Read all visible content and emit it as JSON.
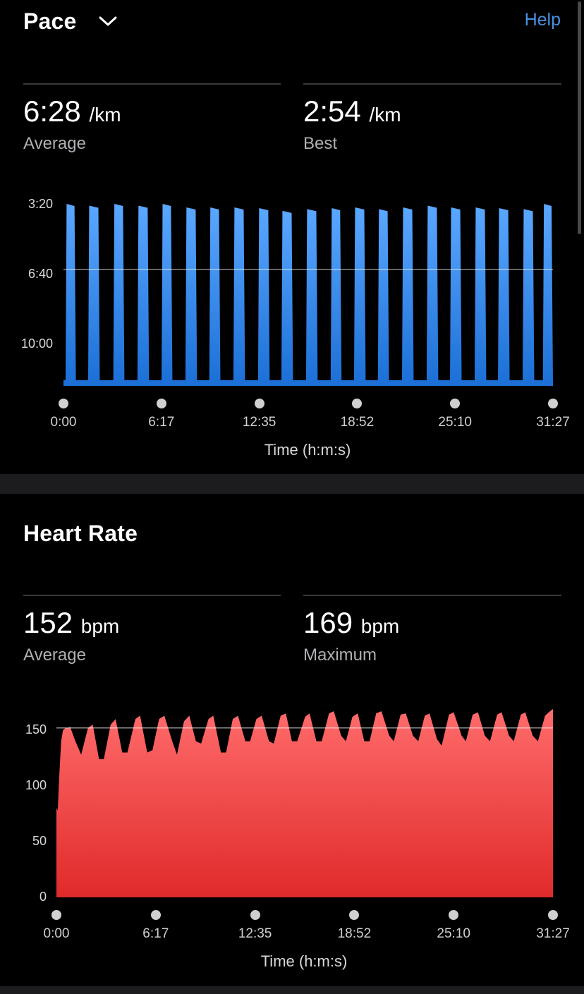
{
  "pace": {
    "title": "Pace",
    "help_label": "Help",
    "average": {
      "value": "6:28",
      "unit": "/km",
      "label": "Average"
    },
    "best": {
      "value": "2:54",
      "unit": "/km",
      "label": "Best"
    }
  },
  "heart_rate": {
    "title": "Heart Rate",
    "average": {
      "value": "152",
      "unit": "bpm",
      "label": "Average"
    },
    "maximum": {
      "value": "169",
      "unit": "bpm",
      "label": "Maximum"
    }
  },
  "colors": {
    "pace_bar_top": "#5aa7ff",
    "pace_bar_bottom": "#1b6fd6",
    "hr_top": "#ff6b6b",
    "hr_bottom": "#e02a2a",
    "help_link": "#4a90e2"
  },
  "chart_data": [
    {
      "type": "area",
      "name": "pace-chart",
      "xlabel": "Time (h:m:s)",
      "x_ticks": [
        "0:00",
        "6:17",
        "12:35",
        "18:52",
        "25:10",
        "31:27"
      ],
      "x_range_seconds": [
        0,
        1887
      ],
      "y_ticks": [
        "3:20",
        "6:40",
        "10:00"
      ],
      "y_tick_values_seconds_per_km": [
        200,
        400,
        600
      ],
      "y_inverted": true,
      "y_range_seconds_per_km": [
        200,
        720
      ],
      "reference_line_seconds_per_km": 388,
      "grid": false,
      "intervals": [
        {
          "start_s": 8,
          "end_s": 48,
          "pace_s": 200
        },
        {
          "start_s": 95,
          "end_s": 140,
          "pace_s": 205
        },
        {
          "start_s": 192,
          "end_s": 235,
          "pace_s": 200
        },
        {
          "start_s": 285,
          "end_s": 330,
          "pace_s": 205
        },
        {
          "start_s": 378,
          "end_s": 420,
          "pace_s": 200
        },
        {
          "start_s": 470,
          "end_s": 515,
          "pace_s": 210
        },
        {
          "start_s": 562,
          "end_s": 605,
          "pace_s": 210
        },
        {
          "start_s": 655,
          "end_s": 700,
          "pace_s": 210
        },
        {
          "start_s": 750,
          "end_s": 795,
          "pace_s": 212
        },
        {
          "start_s": 840,
          "end_s": 885,
          "pace_s": 220
        },
        {
          "start_s": 935,
          "end_s": 980,
          "pace_s": 215
        },
        {
          "start_s": 1030,
          "end_s": 1072,
          "pace_s": 212
        },
        {
          "start_s": 1120,
          "end_s": 1165,
          "pace_s": 210
        },
        {
          "start_s": 1212,
          "end_s": 1255,
          "pace_s": 215
        },
        {
          "start_s": 1305,
          "end_s": 1350,
          "pace_s": 210
        },
        {
          "start_s": 1400,
          "end_s": 1445,
          "pace_s": 205
        },
        {
          "start_s": 1490,
          "end_s": 1535,
          "pace_s": 210
        },
        {
          "start_s": 1585,
          "end_s": 1630,
          "pace_s": 210
        },
        {
          "start_s": 1675,
          "end_s": 1720,
          "pace_s": 212
        },
        {
          "start_s": 1770,
          "end_s": 1815,
          "pace_s": 215
        },
        {
          "start_s": 1848,
          "end_s": 1887,
          "pace_s": 200
        }
      ]
    },
    {
      "type": "area",
      "name": "heart-rate-chart",
      "xlabel": "Time (h:m:s)",
      "x_ticks": [
        "0:00",
        "6:17",
        "12:35",
        "18:52",
        "25:10",
        "31:27"
      ],
      "x_range_seconds": [
        0,
        1887
      ],
      "y_ticks": [
        "150",
        "100",
        "50",
        "0"
      ],
      "ylim": [
        0,
        170
      ],
      "reference_line": 152,
      "grid": false,
      "x": [
        0,
        5,
        10,
        18,
        25,
        35,
        45,
        52,
        72,
        94,
        120,
        138,
        162,
        180,
        206,
        225,
        250,
        270,
        300,
        318,
        345,
        365,
        390,
        410,
        440,
        458,
        485,
        505,
        530,
        550,
        578,
        596,
        625,
        645,
        670,
        690,
        718,
        736,
        760,
        780,
        808,
        826,
        852,
        872,
        895,
        915,
        945,
        962,
        988,
        1008,
        1036,
        1054,
        1082,
        1100,
        1125,
        1145,
        1170,
        1190,
        1215,
        1235,
        1265,
        1282,
        1308,
        1328,
        1355,
        1375,
        1400,
        1418,
        1446,
        1464,
        1492,
        1510,
        1540,
        1556,
        1582,
        1602,
        1628,
        1648,
        1675,
        1692,
        1720,
        1738,
        1765,
        1782,
        1810,
        1830,
        1857,
        1876,
        1887
      ],
      "y": [
        80,
        78,
        105,
        140,
        150,
        152,
        152,
        153,
        140,
        128,
        152,
        155,
        124,
        124,
        155,
        160,
        130,
        130,
        160,
        163,
        130,
        132,
        160,
        163,
        140,
        128,
        158,
        163,
        140,
        138,
        160,
        163,
        130,
        130,
        160,
        163,
        140,
        140,
        160,
        163,
        140,
        138,
        163,
        165,
        140,
        140,
        162,
        165,
        140,
        140,
        165,
        167,
        145,
        140,
        162,
        165,
        140,
        140,
        165,
        167,
        145,
        140,
        164,
        165,
        145,
        140,
        163,
        165,
        142,
        136,
        164,
        166,
        145,
        140,
        164,
        166,
        145,
        140,
        164,
        166,
        145,
        140,
        164,
        166,
        145,
        140,
        163,
        167,
        169
      ]
    }
  ]
}
